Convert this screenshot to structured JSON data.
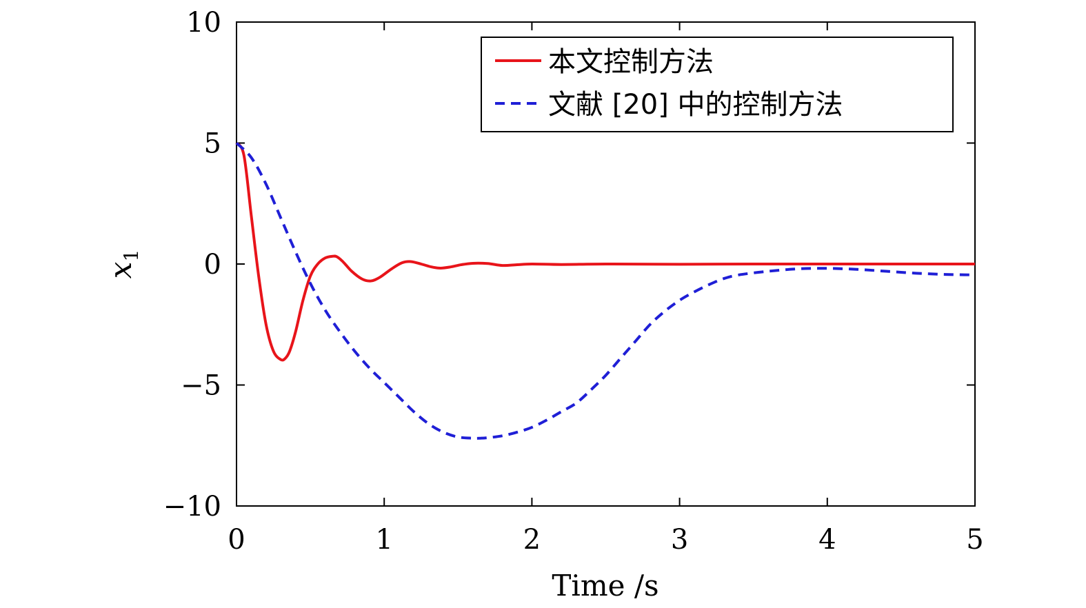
{
  "chart_data": {
    "type": "line",
    "title": "",
    "xlabel": "Time /s",
    "ylabel": "x",
    "ylabel_subscript": "1",
    "xlim": [
      0,
      5
    ],
    "ylim": [
      -10,
      10
    ],
    "xticks": [
      0,
      1,
      2,
      3,
      4,
      5
    ],
    "xtick_labels": [
      "0",
      "1",
      "2",
      "3",
      "4",
      "5"
    ],
    "yticks": [
      -10,
      -5,
      0,
      5,
      10
    ],
    "ytick_labels": [
      "−10",
      "−5",
      "0",
      "5",
      "10"
    ],
    "grid": false,
    "legend_position": "top-right",
    "series": [
      {
        "name": "本文控制方法",
        "color": "#e8141a",
        "dash": "solid",
        "x": [
          0,
          0.05,
          0.1,
          0.15,
          0.2,
          0.25,
          0.3,
          0.33,
          0.36,
          0.4,
          0.45,
          0.5,
          0.55,
          0.6,
          0.65,
          0.68,
          0.72,
          0.78,
          0.85,
          0.91,
          0.97,
          1.05,
          1.12,
          1.18,
          1.25,
          1.32,
          1.38,
          1.45,
          1.52,
          1.6,
          1.7,
          1.8,
          1.9,
          2.0,
          2.2,
          2.5,
          3.0,
          3.5,
          4.0,
          4.5,
          5.0
        ],
        "y": [
          5.0,
          4.5,
          2.0,
          -0.5,
          -2.5,
          -3.6,
          -3.95,
          -3.9,
          -3.6,
          -2.8,
          -1.5,
          -0.5,
          0.0,
          0.25,
          0.32,
          0.3,
          0.1,
          -0.3,
          -0.62,
          -0.7,
          -0.55,
          -0.2,
          0.05,
          0.1,
          0.0,
          -0.12,
          -0.17,
          -0.12,
          -0.03,
          0.03,
          0.02,
          -0.06,
          -0.03,
          0.0,
          -0.02,
          0.0,
          -0.01,
          0.0,
          0.0,
          0.0,
          0.0
        ]
      },
      {
        "name": "文献 [20] 中的控制方法",
        "color": "#1f1fd6",
        "dash": "dashed",
        "x": [
          0,
          0.1,
          0.2,
          0.3,
          0.4,
          0.5,
          0.6,
          0.7,
          0.8,
          0.9,
          1.0,
          1.1,
          1.2,
          1.3,
          1.4,
          1.5,
          1.6,
          1.65,
          1.7,
          1.8,
          1.9,
          2.0,
          2.1,
          2.2,
          2.3,
          2.4,
          2.5,
          2.6,
          2.7,
          2.8,
          2.9,
          3.0,
          3.1,
          3.2,
          3.3,
          3.4,
          3.6,
          3.8,
          4.0,
          4.2,
          4.4,
          4.6,
          4.8,
          5.0
        ],
        "y": [
          5.0,
          4.4,
          3.3,
          1.9,
          0.5,
          -0.8,
          -1.9,
          -2.8,
          -3.6,
          -4.3,
          -4.9,
          -5.5,
          -6.1,
          -6.6,
          -6.95,
          -7.15,
          -7.2,
          -7.2,
          -7.18,
          -7.1,
          -6.95,
          -6.75,
          -6.45,
          -6.1,
          -5.75,
          -5.2,
          -4.6,
          -3.9,
          -3.2,
          -2.5,
          -1.95,
          -1.5,
          -1.15,
          -0.85,
          -0.6,
          -0.45,
          -0.3,
          -0.2,
          -0.18,
          -0.22,
          -0.3,
          -0.38,
          -0.43,
          -0.45
        ]
      }
    ]
  }
}
